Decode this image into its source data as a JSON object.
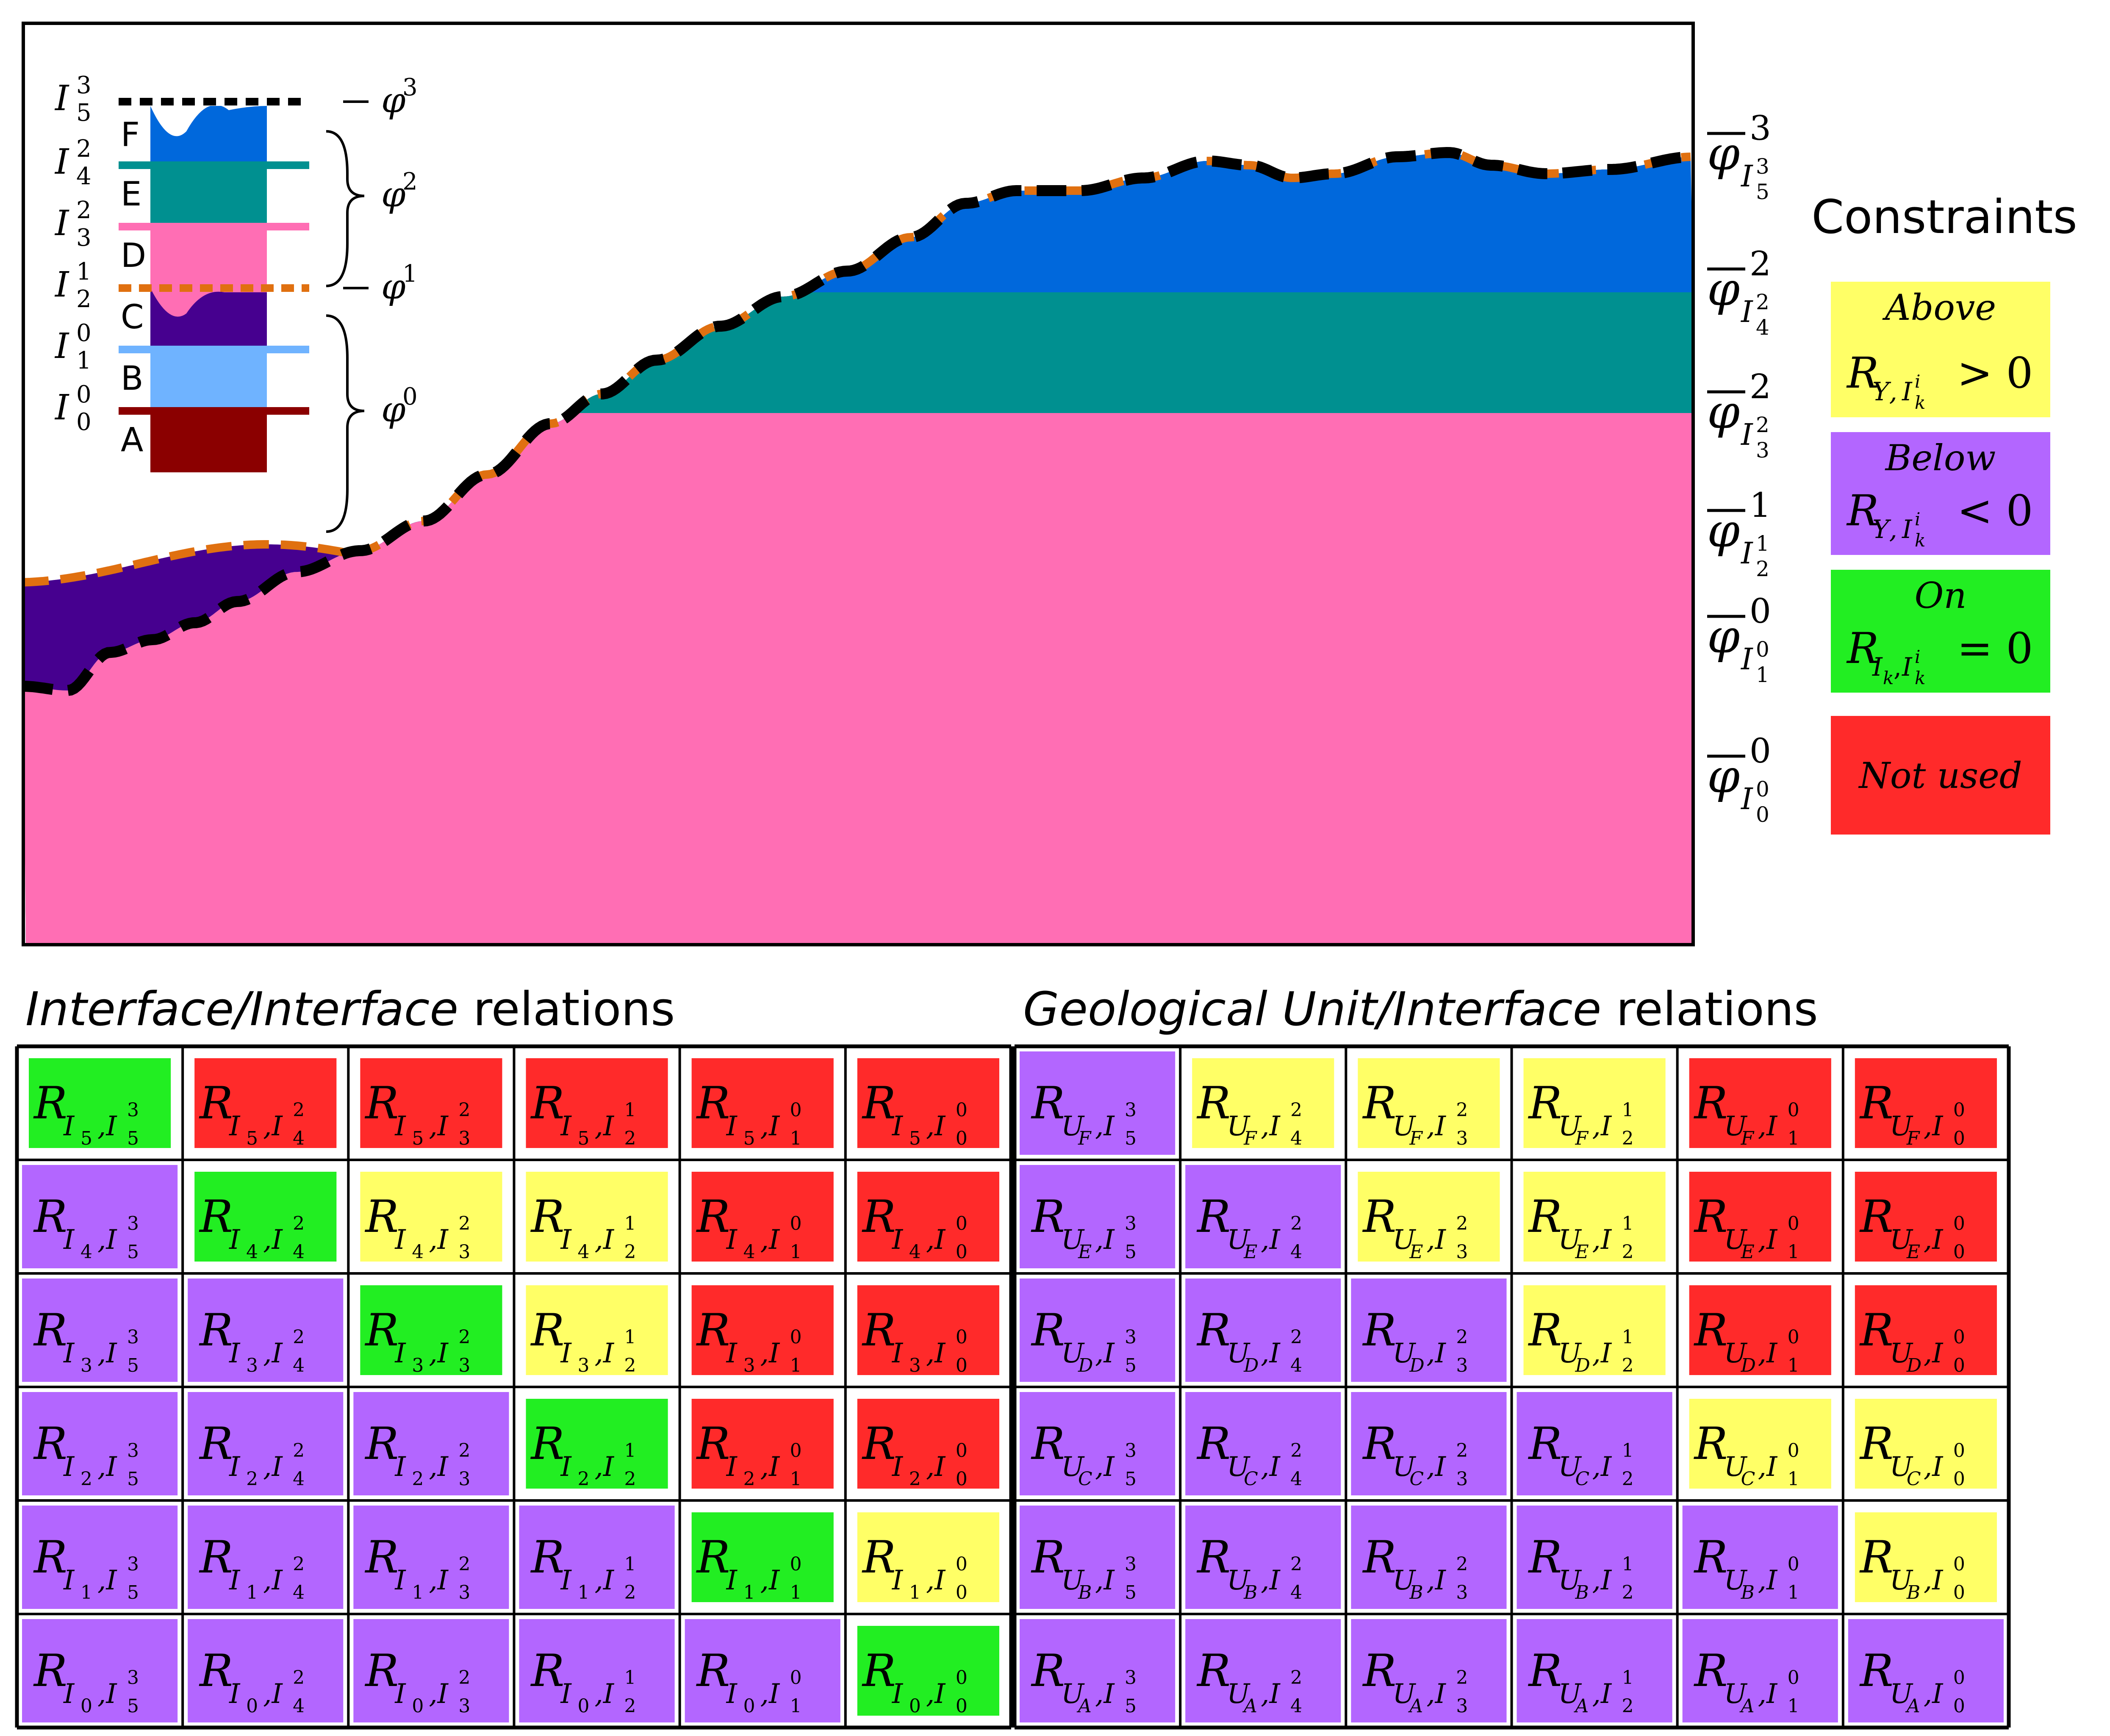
{
  "colors": {
    "bg": "#ffffff",
    "unit_A": "#8b0000",
    "unit_B": "#6fb3ff",
    "unit_C": "#46008f",
    "unit_D": "#ff6eb4",
    "unit_E": "#009090",
    "unit_F": "#0068dc",
    "black_interface": "#000000",
    "orange_interface": "#e07010",
    "above": "#ffff66",
    "below": "#b366ff",
    "on": "#22ee22",
    "not_used": "#ff2a2a"
  },
  "column_labels": {
    "units": [
      "F",
      "E",
      "D",
      "C",
      "B",
      "A"
    ],
    "interfaces": [
      {
        "base": "I",
        "sub": "5",
        "sup": "3"
      },
      {
        "base": "I",
        "sub": "4",
        "sup": "2"
      },
      {
        "base": "I",
        "sub": "3",
        "sup": "2"
      },
      {
        "base": "I",
        "sub": "2",
        "sup": "1"
      },
      {
        "base": "I",
        "sub": "1",
        "sup": "0"
      },
      {
        "base": "I",
        "sub": "0",
        "sup": "0"
      }
    ],
    "potentials": [
      {
        "base": "φ",
        "sup": "3"
      },
      {
        "base": "φ",
        "sup": "2"
      },
      {
        "base": "φ",
        "sup": "1"
      },
      {
        "base": "φ",
        "sup": "0"
      }
    ]
  },
  "right_labels": [
    {
      "sup": "3",
      "sub_base": "I",
      "sub_sub": "5",
      "sub_sup": "3"
    },
    {
      "sup": "2",
      "sub_base": "I",
      "sub_sub": "4",
      "sub_sup": "2"
    },
    {
      "sup": "2",
      "sub_base": "I",
      "sub_sub": "3",
      "sub_sup": "2"
    },
    {
      "sup": "1",
      "sub_base": "I",
      "sub_sub": "2",
      "sub_sup": "1"
    },
    {
      "sup": "0",
      "sub_base": "I",
      "sub_sub": "1",
      "sub_sup": "0"
    },
    {
      "sup": "0",
      "sub_base": "I",
      "sub_sub": "0",
      "sub_sup": "0"
    }
  ],
  "right_label_base": "φ",
  "legend": {
    "title": "Constraints",
    "items": [
      {
        "key": "above",
        "word": "Above",
        "rel": "Υ",
        "op": "> 0"
      },
      {
        "key": "below",
        "word": "Below",
        "rel": "Υ",
        "op": "< 0"
      },
      {
        "key": "on",
        "word": "On",
        "rel": "I_k",
        "op": "= 0"
      },
      {
        "key": "not_used",
        "word": "Not used"
      }
    ],
    "rel_base": "R",
    "rel_sub_sub": "k",
    "rel_sub_sup": "i",
    "rel_I": "I"
  },
  "tables": {
    "interface": {
      "title_italic": "Interface/Interface",
      "title_rest": " relations",
      "row_subs": [
        "5",
        "4",
        "3",
        "2",
        "1",
        "0"
      ],
      "col_labels": [
        {
          "sub": "5",
          "sup": "3"
        },
        {
          "sub": "4",
          "sup": "2"
        },
        {
          "sub": "3",
          "sup": "2"
        },
        {
          "sub": "2",
          "sup": "1"
        },
        {
          "sub": "1",
          "sup": "0"
        },
        {
          "sub": "0",
          "sup": "0"
        }
      ],
      "status": [
        [
          "on",
          "not_used",
          "not_used",
          "not_used",
          "not_used",
          "not_used"
        ],
        [
          "below",
          "on",
          "above",
          "above",
          "not_used",
          "not_used"
        ],
        [
          "below",
          "below",
          "on",
          "above",
          "not_used",
          "not_used"
        ],
        [
          "below",
          "below",
          "below",
          "on",
          "not_used",
          "not_used"
        ],
        [
          "below",
          "below",
          "below",
          "below",
          "on",
          "above"
        ],
        [
          "below",
          "below",
          "below",
          "below",
          "below",
          "on"
        ]
      ]
    },
    "unit": {
      "title_italic": "Geological Unit/Interface",
      "title_rest": " relations",
      "row_subs": [
        "F",
        "E",
        "D",
        "C",
        "B",
        "A"
      ],
      "col_labels": [
        {
          "sub": "5",
          "sup": "3"
        },
        {
          "sub": "4",
          "sup": "2"
        },
        {
          "sub": "3",
          "sup": "2"
        },
        {
          "sub": "2",
          "sup": "1"
        },
        {
          "sub": "1",
          "sup": "0"
        },
        {
          "sub": "0",
          "sup": "0"
        }
      ],
      "status": [
        [
          "below",
          "above",
          "above",
          "above",
          "not_used",
          "not_used"
        ],
        [
          "below",
          "below",
          "above",
          "above",
          "not_used",
          "not_used"
        ],
        [
          "below",
          "below",
          "below",
          "above",
          "not_used",
          "not_used"
        ],
        [
          "below",
          "below",
          "below",
          "below",
          "above",
          "above"
        ],
        [
          "below",
          "below",
          "below",
          "below",
          "below",
          "above"
        ],
        [
          "below",
          "below",
          "below",
          "below",
          "below",
          "below"
        ]
      ]
    }
  }
}
